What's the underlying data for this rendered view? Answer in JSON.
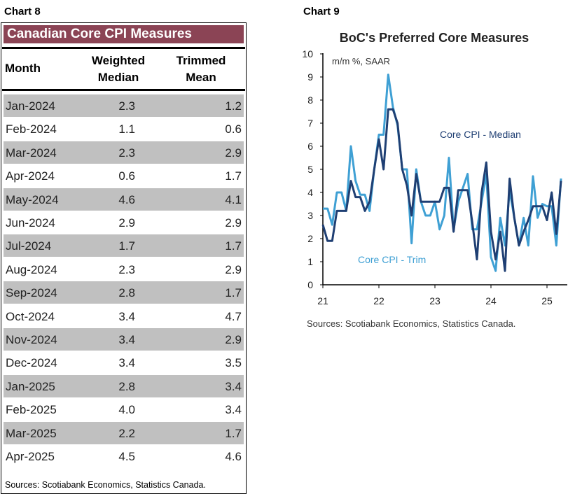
{
  "left": {
    "label": "Chart 8",
    "title": "Canadian Core CPI Measures",
    "headers": {
      "month": "Month",
      "median_1": "Weighted",
      "median_2": "Median",
      "trim_1": "Trimmed",
      "trim_2": "Mean"
    },
    "rows": [
      {
        "month": "Jan-2024",
        "median": "2.3",
        "trim": "1.2"
      },
      {
        "month": "Feb-2024",
        "median": "1.1",
        "trim": "0.6"
      },
      {
        "month": "Mar-2024",
        "median": "2.3",
        "trim": "2.9"
      },
      {
        "month": "Apr-2024",
        "median": "0.6",
        "trim": "1.7"
      },
      {
        "month": "May-2024",
        "median": "4.6",
        "trim": "4.1"
      },
      {
        "month": "Jun-2024",
        "median": "2.9",
        "trim": "2.9"
      },
      {
        "month": "Jul-2024",
        "median": "1.7",
        "trim": "1.7"
      },
      {
        "month": "Aug-2024",
        "median": "2.3",
        "trim": "2.9"
      },
      {
        "month": "Sep-2024",
        "median": "2.8",
        "trim": "1.7"
      },
      {
        "month": "Oct-2024",
        "median": "3.4",
        "trim": "4.7"
      },
      {
        "month": "Nov-2024",
        "median": "3.4",
        "trim": "2.9"
      },
      {
        "month": "Dec-2024",
        "median": "3.4",
        "trim": "3.5"
      },
      {
        "month": "Jan-2025",
        "median": "2.8",
        "trim": "3.4"
      },
      {
        "month": "Feb-2025",
        "median": "4.0",
        "trim": "3.4"
      },
      {
        "month": "Mar-2025",
        "median": "2.2",
        "trim": "1.7"
      },
      {
        "month": "Apr-2025",
        "median": "4.5",
        "trim": "4.6"
      }
    ],
    "source": "Sources: Scotiabank Economics, Statistics Canada."
  },
  "right": {
    "label": "Chart 9",
    "source": "Sources: Scotiabank Economics, Statistics Canada."
  },
  "chart_data": {
    "type": "line",
    "title": "BoC's Preferred Core Measures",
    "ylabel": "m/m %, SAAR",
    "ylim": [
      0,
      10
    ],
    "yticks": [
      "0",
      "1",
      "2",
      "3",
      "4",
      "5",
      "6",
      "7",
      "8",
      "9",
      "10"
    ],
    "xticks": [
      "21",
      "22",
      "23",
      "24",
      "25"
    ],
    "x_start": "Jan-2021",
    "grid": false,
    "series": [
      {
        "name": "Core CPI - Median",
        "color": "#1f3f73",
        "values": [
          2.6,
          1.9,
          1.9,
          3.2,
          3.2,
          3.2,
          4.5,
          3.8,
          3.8,
          3.2,
          3.6,
          5.0,
          6.3,
          5.0,
          7.6,
          7.6,
          7.0,
          5.0,
          4.3,
          3.0,
          4.8,
          3.6,
          3.6,
          3.6,
          3.6,
          3.6,
          4.2,
          4.2,
          2.3,
          4.1,
          4.1,
          4.1,
          2.7,
          1.1,
          4.0,
          5.3,
          2.3,
          1.1,
          2.3,
          0.6,
          4.6,
          2.9,
          1.7,
          2.3,
          2.8,
          3.4,
          3.4,
          3.4,
          2.8,
          4.0,
          2.2,
          4.5
        ]
      },
      {
        "name": "Core CPI - Trim",
        "color": "#3fa0d4",
        "values": [
          3.3,
          3.3,
          2.6,
          4.0,
          4.0,
          3.2,
          6.0,
          4.5,
          3.9,
          3.9,
          3.2,
          5.0,
          6.5,
          6.5,
          9.1,
          7.7,
          6.9,
          5.0,
          5.0,
          1.8,
          5.0,
          3.6,
          3.0,
          3.0,
          3.6,
          2.4,
          3.0,
          5.5,
          2.4,
          3.6,
          4.2,
          4.8,
          2.4,
          2.4,
          3.6,
          4.8,
          1.2,
          0.6,
          2.9,
          1.7,
          4.1,
          2.9,
          1.7,
          2.9,
          1.7,
          4.7,
          2.9,
          3.5,
          3.4,
          3.4,
          1.7,
          4.6
        ]
      }
    ]
  }
}
